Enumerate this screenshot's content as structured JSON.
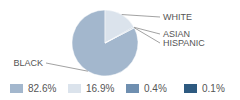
{
  "chart_data": {
    "type": "pie",
    "categories": [
      "BLACK",
      "WHITE",
      "ASIAN",
      "HISPANIC"
    ],
    "values": [
      82.6,
      16.9,
      0.4,
      0.1
    ],
    "value_labels": [
      "82.6%",
      "16.9%",
      "0.4%",
      "0.1%"
    ],
    "colors": [
      "#a3b7cd",
      "#dbe3ec",
      "#6f8fb0",
      "#2e5a80"
    ],
    "legend": "bottom"
  }
}
